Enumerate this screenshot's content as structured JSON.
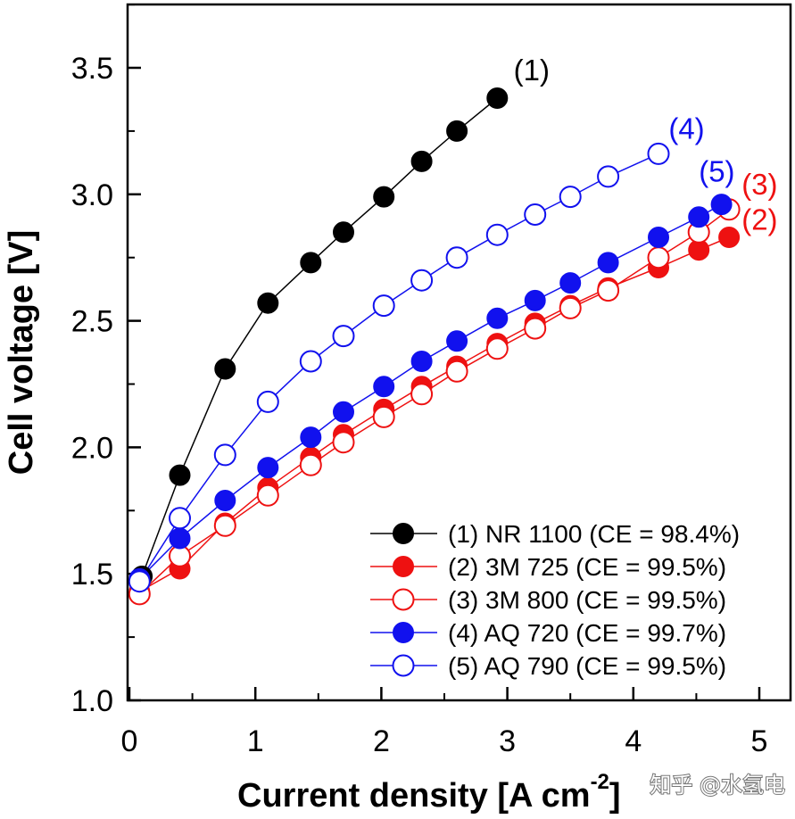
{
  "chart_data": {
    "type": "line",
    "xlabel": "Current density [A cm",
    "xlabel_sup": "-2",
    "xlabel_close": "]",
    "ylabel": "Cell voltage [V]",
    "xlim": [
      0,
      5
    ],
    "ylim": [
      1.0,
      3.75
    ],
    "xticks": [
      0,
      1,
      2,
      3,
      4,
      5
    ],
    "xtick_labels": [
      "0",
      "1",
      "2",
      "3",
      "4",
      "5"
    ],
    "yticks": [
      1.0,
      1.5,
      2.0,
      2.5,
      3.0,
      3.5
    ],
    "ytick_labels": [
      "1.0",
      "1.5",
      "2.0",
      "2.5",
      "3.0",
      "3.5"
    ],
    "legend_position": "bottom-right",
    "series": [
      {
        "name": "(1) NR 1100 (CE = 98.4%)",
        "marker": "filled",
        "color": "#000000",
        "x": [
          0.1,
          0.4,
          0.76,
          1.1,
          1.44,
          1.7,
          2.02,
          2.32,
          2.6,
          2.92
        ],
        "y": [
          1.49,
          1.89,
          2.31,
          2.57,
          2.73,
          2.85,
          2.99,
          3.13,
          3.25,
          3.38
        ]
      },
      {
        "name": "(2) 3M 725 (CE = 99.5%)",
        "marker": "filled",
        "color": "#ee1111",
        "x": [
          0.08,
          0.4,
          0.76,
          1.1,
          1.44,
          1.7,
          2.02,
          2.32,
          2.6,
          2.92,
          3.22,
          3.5,
          3.8,
          4.2,
          4.52,
          4.76
        ],
        "y": [
          1.43,
          1.52,
          1.7,
          1.84,
          1.96,
          2.05,
          2.15,
          2.24,
          2.32,
          2.41,
          2.49,
          2.56,
          2.63,
          2.71,
          2.78,
          2.83
        ]
      },
      {
        "name": "(3) 3M 800 (CE = 99.5%)",
        "marker": "open",
        "color": "#ee1111",
        "x": [
          0.08,
          0.4,
          0.76,
          1.1,
          1.44,
          1.7,
          2.02,
          2.32,
          2.6,
          2.92,
          3.22,
          3.5,
          3.8,
          4.2,
          4.52,
          4.76
        ],
        "y": [
          1.42,
          1.57,
          1.69,
          1.81,
          1.93,
          2.02,
          2.12,
          2.21,
          2.3,
          2.39,
          2.47,
          2.55,
          2.62,
          2.75,
          2.85,
          2.94
        ]
      },
      {
        "name": "(4) AQ 720 (CE = 99.7%)",
        "marker": "filled",
        "color": "#1111ee",
        "x": [
          0.08,
          0.4,
          0.76,
          1.1,
          1.44,
          1.7,
          2.02,
          2.32,
          2.6,
          2.92,
          3.22,
          3.5,
          3.8,
          4.2,
          4.52,
          4.7
        ],
        "y": [
          1.48,
          1.64,
          1.79,
          1.92,
          2.04,
          2.14,
          2.24,
          2.34,
          2.42,
          2.51,
          2.58,
          2.65,
          2.73,
          2.83,
          2.91,
          2.96
        ]
      },
      {
        "name": "(5) AQ 790 (CE = 99.5%)",
        "marker": "open",
        "color": "#1111ee",
        "x": [
          0.08,
          0.4,
          0.76,
          1.1,
          1.44,
          1.7,
          2.02,
          2.32,
          2.6,
          2.92,
          3.22,
          3.5,
          3.8,
          4.2
        ],
        "y": [
          1.47,
          1.72,
          1.97,
          2.18,
          2.34,
          2.44,
          2.56,
          2.66,
          2.75,
          2.84,
          2.92,
          2.99,
          3.07,
          3.16
        ]
      }
    ],
    "annotations": [
      {
        "text": "(1)",
        "color": "#000000",
        "x": 3.05,
        "y": 3.45
      },
      {
        "text": "(4)",
        "color": "#1111ee",
        "x": 4.28,
        "y": 3.22
      },
      {
        "text": "(5)",
        "color": "#1111ee",
        "x": 4.52,
        "y": 3.05
      },
      {
        "text": "(3)",
        "color": "#ee1111",
        "x": 4.86,
        "y": 3.0
      },
      {
        "text": "(2)",
        "color": "#ee1111",
        "x": 4.86,
        "y": 2.86
      }
    ]
  },
  "watermark": "知乎 @水氢电"
}
